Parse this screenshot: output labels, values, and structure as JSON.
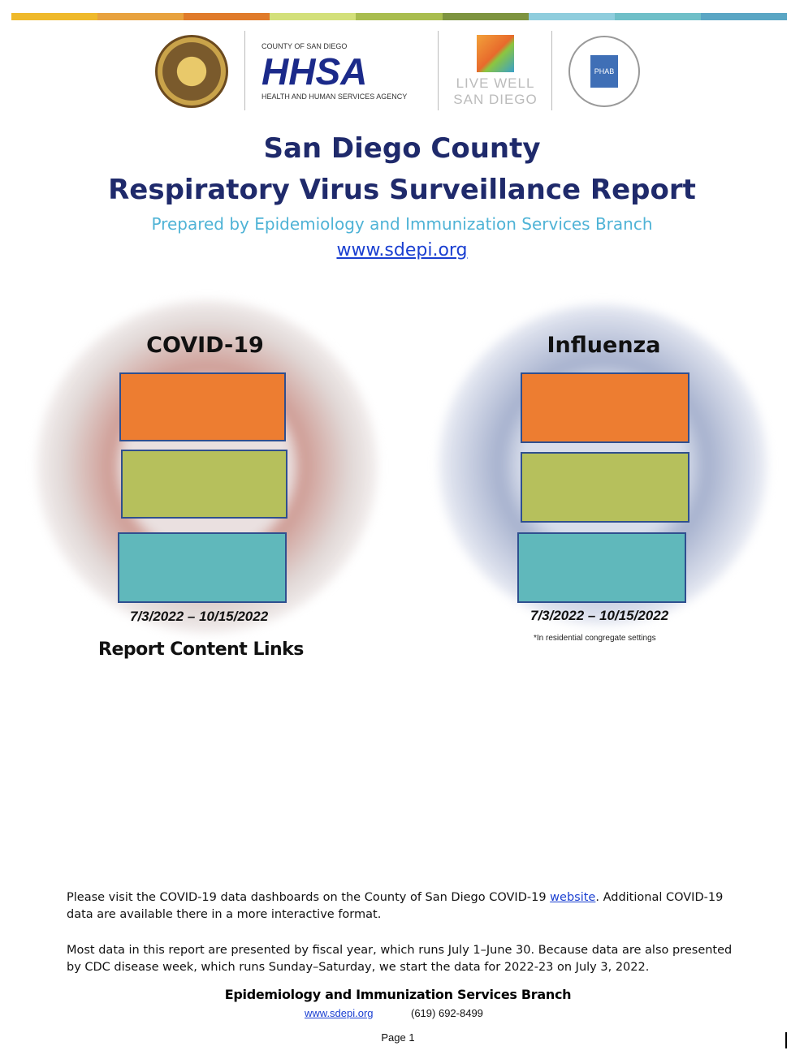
{
  "colors": {
    "bar": [
      "#efb92b",
      "#e8a23e",
      "#e07b2a",
      "#d3e07a",
      "#a9bd4f",
      "#7e9440",
      "#8fcddd",
      "#6fbfc8",
      "#5aa6c4"
    ],
    "orange": "#ed7d31",
    "green": "#b6c05c",
    "teal": "#60b8bb",
    "title": "#1f2a6b",
    "subtitle": "#4fb3d6"
  },
  "logos": {
    "hhsa_top": "COUNTY OF SAN DIEGO",
    "hhsa_main": "HHSA",
    "hhsa_bottom": "HEALTH AND HUMAN SERVICES AGENCY",
    "livewell": "LIVE WELL SAN DIEGO",
    "phab": "PHAB"
  },
  "header": {
    "title1": "San Diego County",
    "title2": "Respiratory Virus Surveillance Report",
    "subtitle": "Prepared by Epidemiology and Immunization Services Branch",
    "link": "www.sdepi.org"
  },
  "covid": {
    "heading": "COVID-19",
    "dates": "7/3/2022 – 10/15/2022"
  },
  "influenza": {
    "heading": "Influenza",
    "dates": "7/3/2022 – 10/15/2022",
    "footnote": "*In residential congregate settings"
  },
  "report_links_heading": "Report Content Links",
  "notes": {
    "p1_a": "Please visit the COVID-19 data dashboards on the County of San Diego COVID-19 ",
    "p1_link": "website",
    "p1_b": ". Additional COVID-19 data are available there in a more interactive format.",
    "p2": "Most data in this report are presented by fiscal year, which runs July 1–June 30. Because data are also presented by CDC disease week, which runs Sunday–Saturday, we start the data for 2022-23 on July 3, 2022."
  },
  "footer": {
    "branch": "Epidemiology and Immunization Services Branch",
    "link": "www.sdepi.org",
    "phone": "(619) 692-8499",
    "page": "Page 1"
  }
}
